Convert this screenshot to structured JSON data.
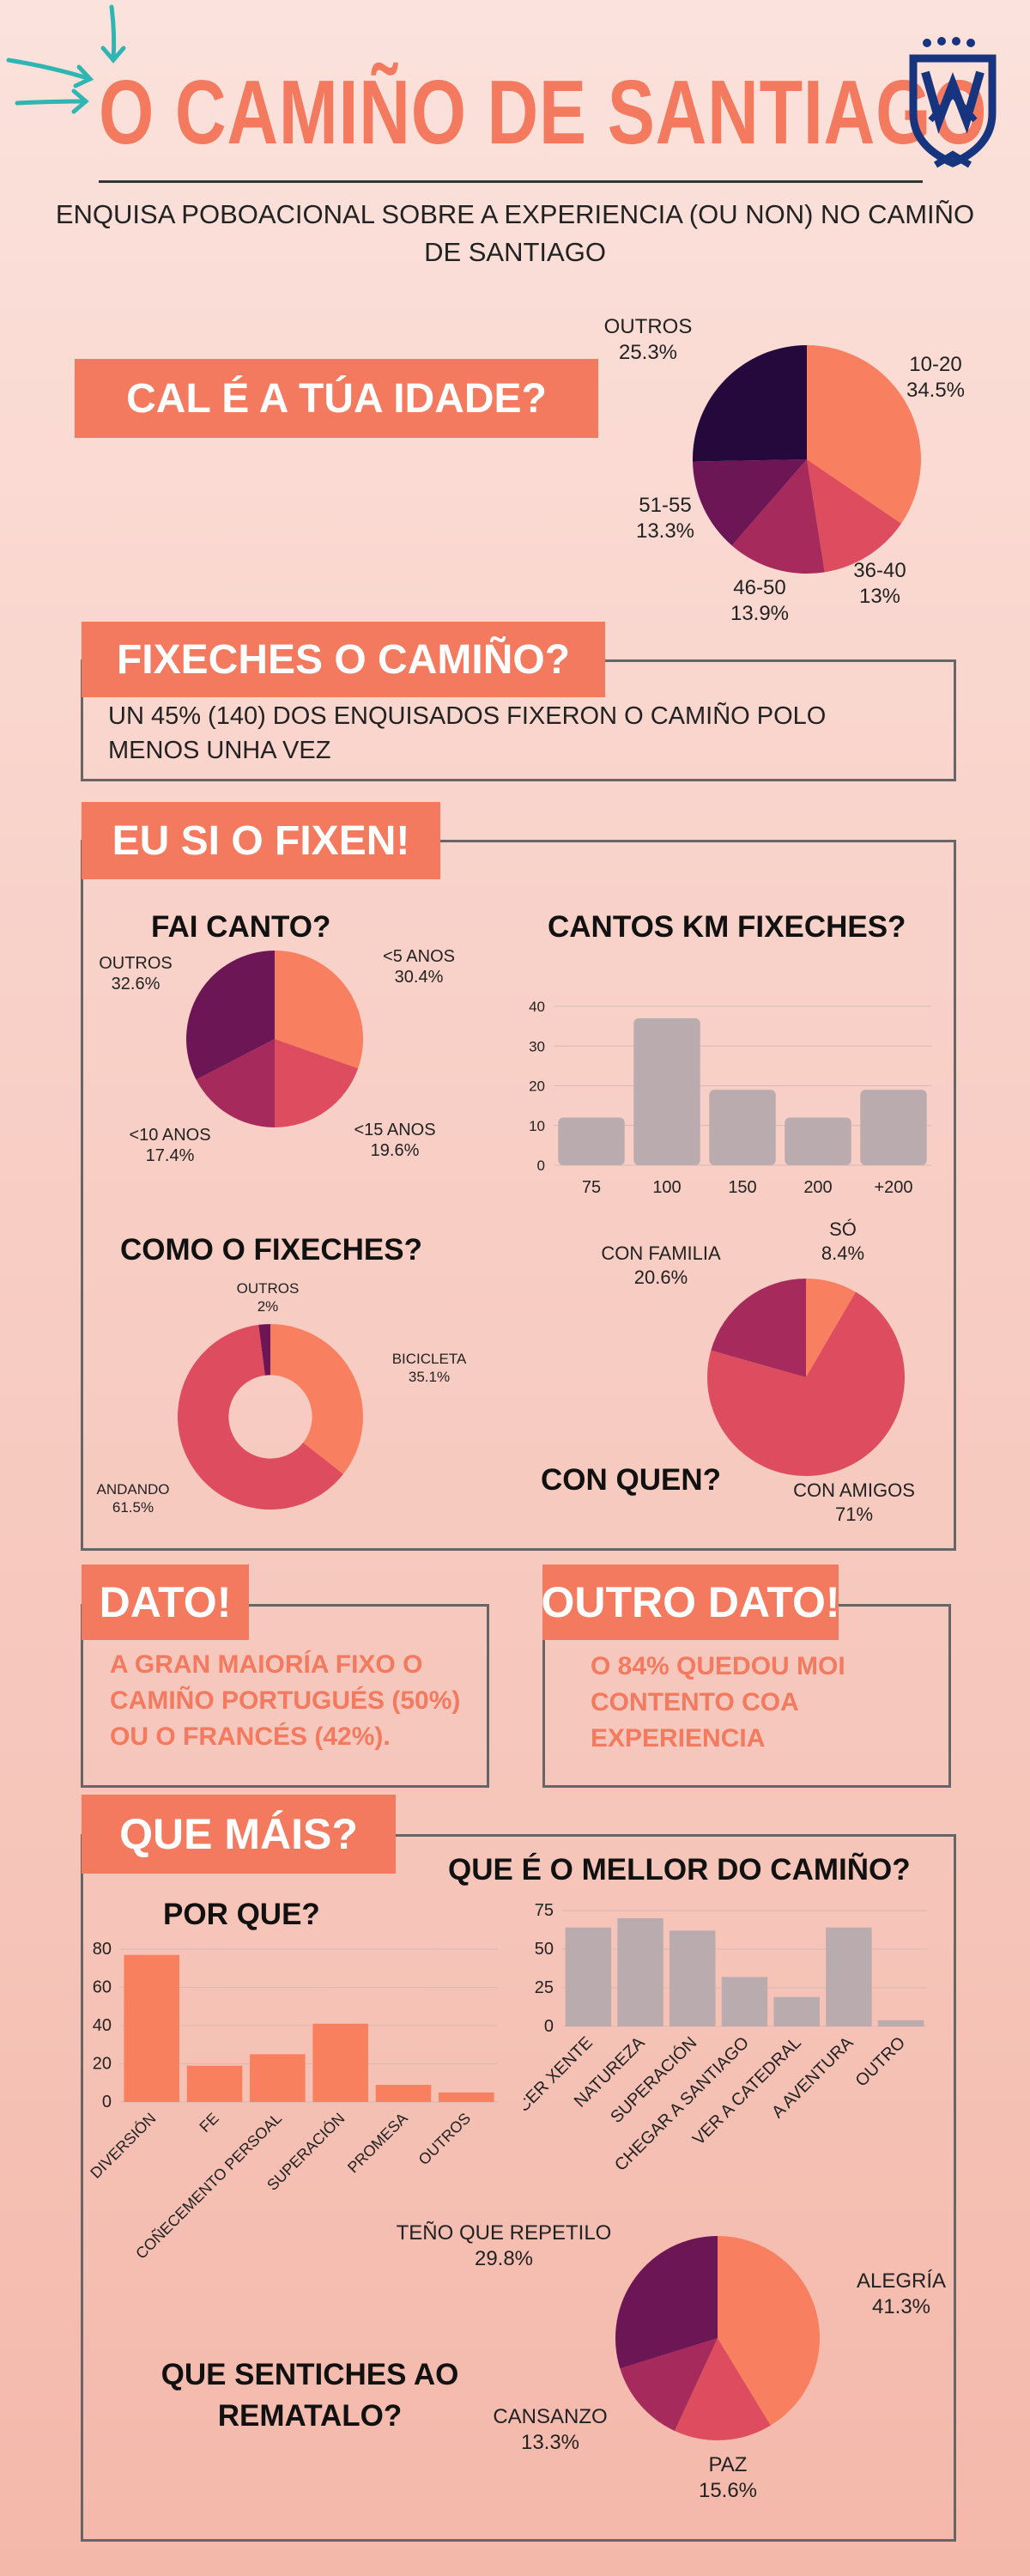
{
  "header": {
    "title": "O CAMIÑO DE SANTIAGO",
    "subtitle": "ENQUISA POBOACIONAL SOBRE A  EXPERIENCIA (OU NON) NO CAMIÑO DE SANTIAGO"
  },
  "colors": {
    "accent": "#f37a5e",
    "pie_1": "#f87f5f",
    "pie_2": "#de4d5f",
    "pie_3": "#a62b5c",
    "pie_4": "#6d1656",
    "pie_5": "#25093d",
    "bar_grey": "#b9abae",
    "bar_orange": "#f8805f",
    "logo": "#17347f"
  },
  "sections": {
    "idade": {
      "banner": "CAL É A TÚA IDADE?"
    },
    "fixeches": {
      "banner": "FIXECHES O CAMIÑO?",
      "text": "UN 45% (140) DOS ENQUISADOS FIXERON O CAMIÑO POLO MENOS UNHA VEZ"
    },
    "fixen": {
      "banner": "EU SI O FIXEN!",
      "fai_canto": "FAI CANTO?",
      "cantos_km": "CANTOS KM FIXECHES?",
      "como": "COMO O FIXECHES?",
      "con_quen": "CON QUEN?"
    },
    "dato": {
      "banner": "DATO!",
      "text": "A GRAN MAIORÍA FIXO O CAMIÑO PORTUGUÉS (50%) OU O FRANCÉS (42%)."
    },
    "outro_dato": {
      "banner": "OUTRO DATO!",
      "text": "O 84% QUEDOU MOI CONTENTO COA EXPERIENCIA"
    },
    "que_mais": {
      "banner": "QUE MÁIS?",
      "mellor": "QUE É O MELLOR DO CAMIÑO?",
      "por_que": "POR QUE?",
      "sentiches": "QUE SENTICHES AO REMATALO?"
    }
  },
  "chart_data": [
    {
      "id": "idade",
      "type": "pie",
      "categories": [
        "10-20",
        "36-40",
        "46-50",
        "51-55",
        "OUTROS"
      ],
      "values": [
        34.5,
        13,
        13.9,
        13.3,
        25.3
      ],
      "value_labels": [
        "34.5%",
        "13%",
        "13.9%",
        "13.3%",
        "25.3%"
      ]
    },
    {
      "id": "fai_canto",
      "type": "pie",
      "categories": [
        "<5 ANOS",
        "<15 ANOS",
        "<10 ANOS",
        "OUTROS"
      ],
      "values": [
        30.4,
        19.6,
        17.4,
        32.6
      ],
      "value_labels": [
        "30.4%",
        "19.6%",
        "17.4%",
        "32.6%"
      ]
    },
    {
      "id": "cantos_km",
      "type": "bar",
      "categories": [
        "75",
        "100",
        "150",
        "200",
        "+200"
      ],
      "values": [
        12,
        37,
        19,
        12,
        19
      ],
      "ylim": [
        0,
        40
      ],
      "yticks": [
        "0",
        "10",
        "20",
        "30",
        "40"
      ]
    },
    {
      "id": "como",
      "type": "pie",
      "donut": true,
      "categories": [
        "BICICLETA",
        "ANDANDO",
        "OUTROS"
      ],
      "values": [
        35.1,
        61.5,
        2
      ],
      "value_labels": [
        "35.1%",
        "61.5%",
        "2%"
      ]
    },
    {
      "id": "con_quen",
      "type": "pie",
      "categories": [
        "SÓ",
        "CON AMIGOS",
        "CON FAMILIA"
      ],
      "values": [
        8.4,
        71,
        20.6
      ],
      "value_labels": [
        "8.4%",
        "71%",
        "20.6%"
      ]
    },
    {
      "id": "mellor",
      "type": "bar",
      "categories": [
        "COÑECER XENTE",
        "NATUREZA",
        "SUPERACIÓN",
        "CHEGAR A SANTIAGO",
        "VER A CATEDRAL",
        "A AVENTURA",
        "OUTRO"
      ],
      "values": [
        64,
        70,
        62,
        32,
        19,
        64,
        4
      ],
      "ylim": [
        0,
        75
      ],
      "yticks": [
        "0",
        "25",
        "50",
        "75"
      ]
    },
    {
      "id": "por_que",
      "type": "bar",
      "categories": [
        "DIVERSIÓN",
        "FE",
        "COÑECEMENTO PERSOAL",
        "SUPERACIÓN",
        "PROMESA",
        "OUTROS"
      ],
      "values": [
        77,
        19,
        25,
        41,
        9,
        5
      ],
      "ylim": [
        0,
        80
      ],
      "yticks": [
        "0",
        "20",
        "40",
        "60",
        "80"
      ]
    },
    {
      "id": "sentiches",
      "type": "pie",
      "categories": [
        "ALEGRÍA",
        "PAZ",
        "CANSANZO",
        "TEÑO QUE REPETILO"
      ],
      "values": [
        41.3,
        15.6,
        13.3,
        29.8
      ],
      "value_labels": [
        "41.3%",
        "15.6%",
        "13.3%",
        "29.8%"
      ]
    }
  ]
}
